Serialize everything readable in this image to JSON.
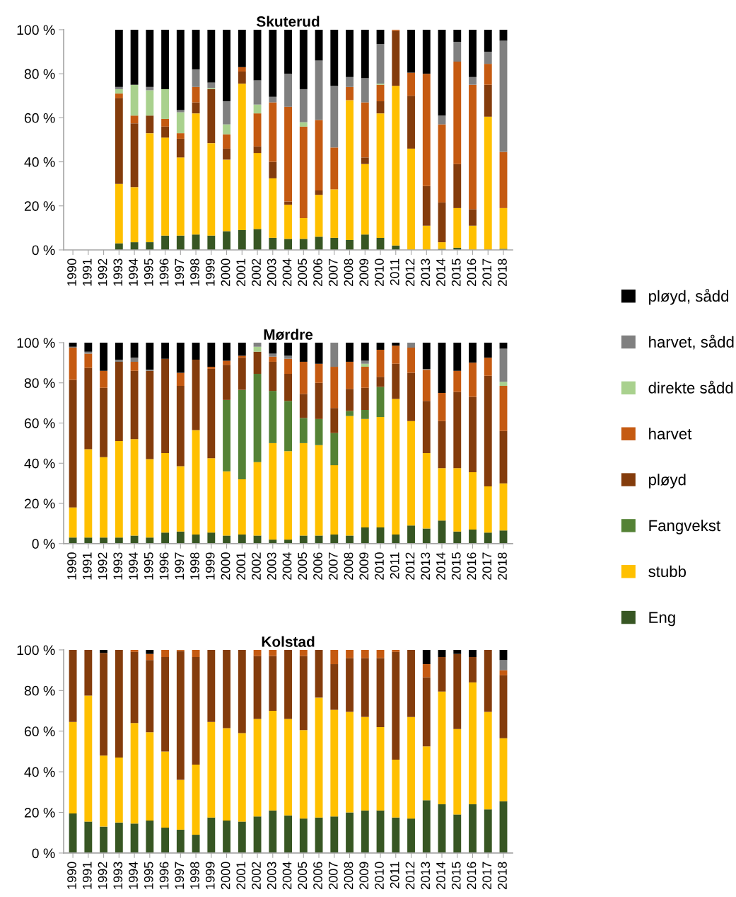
{
  "chart_data": [
    {
      "type": "bar",
      "stacked": true,
      "title": "Skuterud",
      "legend": "right",
      "categories": [
        "1990",
        "1991",
        "1992",
        "1993",
        "1994",
        "1995",
        "1996",
        "1997",
        "1998",
        "1999",
        "2000",
        "2001",
        "2002",
        "2003",
        "2004",
        "2005",
        "2006",
        "2007",
        "2008",
        "2009",
        "2010",
        "2011",
        "2012",
        "2013",
        "2014",
        "2015",
        "2016",
        "2017",
        "2018"
      ],
      "ylim": [
        0,
        100
      ],
      "yticks": [
        {
          "value": 0,
          "label": "0 %"
        },
        {
          "value": 20,
          "label": "20 %"
        },
        {
          "value": 40,
          "label": "40 %"
        },
        {
          "value": 60,
          "label": "60 %"
        },
        {
          "value": 80,
          "label": "80 %"
        },
        {
          "value": 100,
          "label": "100 %"
        }
      ],
      "series": [
        {
          "name": "Eng",
          "color": "#375623",
          "values": [
            null,
            null,
            null,
            3,
            3.5,
            3.5,
            6.5,
            6.5,
            7,
            6.5,
            8.5,
            9,
            9.5,
            5.5,
            5,
            5,
            6,
            5.5,
            4.5,
            7,
            5.5,
            2,
            0,
            0,
            0.5,
            1,
            0,
            0,
            0.5
          ]
        },
        {
          "name": "stubb",
          "color": "#ffc000",
          "values": [
            null,
            null,
            null,
            27,
            25,
            49.5,
            44.5,
            35.5,
            55,
            42,
            32.5,
            66.5,
            34.5,
            27,
            15.5,
            9.5,
            19,
            22,
            63.5,
            32,
            56.5,
            72.5,
            46,
            11,
            3,
            18,
            11,
            60.5,
            18.5
          ]
        },
        {
          "name": "Fangvekst",
          "color": "#548235",
          "values": [
            null,
            null,
            null,
            0,
            0,
            0,
            0,
            0,
            0,
            0,
            0,
            0,
            0,
            0,
            0,
            0,
            0,
            0,
            0,
            0,
            0,
            0,
            0,
            0,
            0,
            0,
            0,
            0,
            0
          ]
        },
        {
          "name": "pløyd",
          "color": "#843c0c",
          "values": [
            null,
            null,
            null,
            39,
            29,
            8,
            5,
            8.5,
            5,
            24.5,
            5,
            5.5,
            3,
            7.5,
            1.5,
            0,
            2,
            0,
            0,
            3,
            5.5,
            25,
            24,
            18,
            18,
            20,
            7.5,
            14.5,
            0
          ]
        },
        {
          "name": "harvet",
          "color": "#c55a11",
          "values": [
            null,
            null,
            null,
            2,
            3.5,
            0,
            3.5,
            2.5,
            7,
            0,
            6.5,
            2,
            15,
            27,
            43,
            41.5,
            32,
            19,
            6,
            25,
            7.5,
            0.5,
            10.5,
            51,
            35.5,
            46.5,
            56.5,
            9.5,
            25.5
          ]
        },
        {
          "name": "direkte sådd",
          "color": "#a9d18e",
          "values": [
            null,
            null,
            null,
            2,
            14,
            11.5,
            13.5,
            9.5,
            0,
            0.5,
            4.5,
            0,
            4,
            0,
            0,
            2,
            0,
            0,
            0,
            0,
            0.5,
            0,
            0,
            0,
            0,
            0,
            0,
            0,
            0
          ]
        },
        {
          "name": "harvet, sådd",
          "color": "#808080",
          "values": [
            null,
            null,
            null,
            1,
            0,
            1.5,
            0,
            1,
            8,
            2.5,
            10.5,
            0,
            11,
            2.5,
            15,
            15,
            27,
            28,
            4.5,
            11,
            18,
            0,
            0,
            0,
            4,
            9,
            3.5,
            5.5,
            50.5
          ]
        },
        {
          "name": "pløyd, sådd",
          "color": "#000000",
          "values": [
            null,
            null,
            null,
            26,
            25,
            26,
            27,
            36.5,
            18,
            24,
            32.5,
            17,
            23,
            30.5,
            20,
            27,
            14,
            25.5,
            21.5,
            22,
            6.5,
            0,
            19.5,
            20,
            39,
            5.5,
            21.5,
            10,
            5
          ]
        }
      ]
    },
    {
      "type": "bar",
      "stacked": true,
      "title": "Mørdre",
      "categories": [
        "1990",
        "1991",
        "1992",
        "1993",
        "1994",
        "1995",
        "1996",
        "1997",
        "1998",
        "1999",
        "2000",
        "2001",
        "2002",
        "2003",
        "2004",
        "2005",
        "2006",
        "2007",
        "2008",
        "2009",
        "2010",
        "2011",
        "2012",
        "2013",
        "2014",
        "2015",
        "2016",
        "2017",
        "2018"
      ],
      "ylim": [
        0,
        100
      ],
      "yticks": [
        {
          "value": 0,
          "label": "0 %"
        },
        {
          "value": 20,
          "label": "20 %"
        },
        {
          "value": 40,
          "label": "40 %"
        },
        {
          "value": 60,
          "label": "60 %"
        },
        {
          "value": 80,
          "label": "80 %"
        },
        {
          "value": 100,
          "label": "100 %"
        }
      ],
      "series": [
        {
          "color": "#375623",
          "values": [
            3,
            3,
            3,
            3,
            4,
            3,
            5.5,
            6,
            4.5,
            5.5,
            4,
            4.5,
            4,
            2,
            2,
            4,
            4,
            4.5,
            4,
            8,
            8,
            4.5,
            9,
            7.5,
            11.5,
            6,
            7,
            5.5,
            6.5
          ]
        },
        {
          "color": "#ffc000",
          "values": [
            15,
            44,
            40,
            48,
            48,
            39,
            39.5,
            32.5,
            52,
            37,
            32,
            27.5,
            36.5,
            48,
            44,
            46,
            45,
            34.5,
            59.5,
            54,
            55,
            67.5,
            52,
            37.5,
            26,
            31.5,
            28.5,
            23,
            23.5
          ]
        },
        {
          "color": "#548235",
          "values": [
            0,
            0,
            0,
            0,
            0,
            0,
            0,
            0,
            0,
            0,
            35.5,
            44.5,
            44,
            26,
            25,
            12.5,
            13,
            16,
            2.5,
            4.5,
            15,
            0,
            0,
            0,
            0,
            0,
            0,
            0,
            0
          ]
        },
        {
          "color": "#843c0c",
          "values": [
            63.5,
            40.5,
            34.5,
            39.5,
            34,
            44,
            47,
            40,
            35,
            44.5,
            17.5,
            16,
            11,
            14.5,
            13.5,
            12,
            18,
            12.5,
            11,
            11,
            5,
            17.5,
            24,
            26,
            23.5,
            38,
            37.5,
            55,
            26
          ]
        },
        {
          "color": "#c55a11",
          "values": [
            16,
            7,
            8.5,
            0,
            4.5,
            0,
            0,
            6.5,
            0,
            1,
            2,
            1,
            0,
            2.5,
            7.5,
            16,
            9.5,
            20.5,
            13.5,
            10.5,
            13.5,
            9,
            12.5,
            15.5,
            14,
            10.5,
            17,
            9,
            22.5
          ]
        },
        {
          "color": "#a9d18e",
          "values": [
            0,
            0,
            0,
            0,
            0,
            0,
            0,
            0,
            0,
            0,
            0,
            0,
            2.5,
            0,
            0,
            0,
            0,
            0,
            0,
            1.5,
            0,
            0,
            0,
            0,
            0,
            0,
            0,
            0,
            2
          ]
        },
        {
          "color": "#808080",
          "values": [
            0.5,
            1,
            0,
            1,
            2,
            0.5,
            0,
            0,
            0,
            0,
            0,
            0,
            2,
            1.5,
            1.5,
            0,
            0,
            12,
            0,
            1.5,
            0,
            0,
            2.5,
            0.5,
            0,
            0,
            0,
            0,
            16.5
          ]
        },
        {
          "color": "#000000",
          "values": [
            2,
            4.5,
            14,
            8.5,
            7.5,
            13.5,
            8,
            15,
            8.5,
            12,
            9,
            6.5,
            0,
            5.5,
            6.5,
            9.5,
            10.5,
            0,
            9.5,
            9,
            3.5,
            1.5,
            0,
            13,
            25,
            14,
            10,
            7.5,
            3
          ]
        }
      ]
    },
    {
      "type": "bar",
      "stacked": true,
      "title": "Kolstad",
      "categories": [
        "1990",
        "1991",
        "1992",
        "1993",
        "1994",
        "1995",
        "1996",
        "1997",
        "1998",
        "1999",
        "2000",
        "2001",
        "2002",
        "2003",
        "2004",
        "2005",
        "2006",
        "2007",
        "2008",
        "2009",
        "2010",
        "2011",
        "2012",
        "2013",
        "2014",
        "2015",
        "2016",
        "2017",
        "2018"
      ],
      "ylim": [
        0,
        100
      ],
      "yticks": [
        {
          "value": 0,
          "label": "0 %"
        },
        {
          "value": 20,
          "label": "20 %"
        },
        {
          "value": 40,
          "label": "40 %"
        },
        {
          "value": 60,
          "label": "60 %"
        },
        {
          "value": 80,
          "label": "80 %"
        },
        {
          "value": 100,
          "label": "100 %"
        }
      ],
      "series": [
        {
          "color": "#375623",
          "values": [
            19.5,
            15.5,
            13,
            15,
            14.5,
            16,
            12.5,
            11.5,
            9,
            17.5,
            16,
            15.5,
            18,
            21,
            18.5,
            17,
            17.5,
            18,
            20,
            21,
            21,
            17.5,
            17,
            26,
            24,
            19,
            24,
            21.5,
            25.5
          ]
        },
        {
          "color": "#ffc000",
          "values": [
            45,
            62,
            35,
            32,
            49.5,
            43.5,
            37.5,
            24.5,
            34.5,
            47,
            45.5,
            43.5,
            48,
            49,
            47.5,
            43.5,
            59,
            52.5,
            49.5,
            46,
            41,
            28.5,
            50,
            26.5,
            55.5,
            42,
            60,
            48,
            31
          ]
        },
        {
          "color": "#548235",
          "values": [
            0,
            0,
            0,
            0,
            0,
            0,
            0,
            0,
            0,
            0,
            0,
            0,
            0,
            0,
            0,
            0,
            0,
            0,
            0,
            0,
            0,
            0,
            0,
            0,
            0,
            0,
            0,
            0,
            0
          ]
        },
        {
          "color": "#843c0c",
          "values": [
            35.5,
            22.5,
            50.5,
            53,
            35,
            35.5,
            46.5,
            63.5,
            53,
            35.5,
            38.5,
            41,
            31,
            27,
            34,
            36.5,
            23.5,
            22.5,
            26.5,
            29,
            34,
            53,
            33,
            34,
            17,
            37,
            12.5,
            30.5,
            31
          ]
        },
        {
          "color": "#c55a11",
          "values": [
            0,
            0,
            0,
            0,
            1,
            3,
            3.5,
            0.5,
            3.5,
            0,
            0,
            0,
            3,
            3,
            0,
            3,
            0,
            7,
            4,
            4,
            4,
            1,
            0,
            6.5,
            0,
            0,
            0,
            0,
            2.5
          ]
        },
        {
          "color": "#a9d18e",
          "values": [
            0,
            0,
            0,
            0,
            0,
            0,
            0,
            0,
            0,
            0,
            0,
            0,
            0,
            0,
            0,
            0,
            0,
            0,
            0,
            0,
            0,
            0,
            0,
            0,
            0,
            0,
            0,
            0,
            0
          ]
        },
        {
          "color": "#808080",
          "values": [
            0,
            0,
            0,
            0,
            0,
            0,
            0,
            0,
            0,
            0,
            0,
            0,
            0,
            0,
            0,
            0,
            0,
            0,
            0,
            0,
            0,
            0,
            0,
            0,
            0,
            0,
            0,
            0,
            5
          ]
        },
        {
          "color": "#000000",
          "values": [
            0,
            0,
            1.5,
            0,
            0,
            2,
            0,
            0,
            0,
            0,
            0,
            0,
            0,
            0,
            0,
            0,
            0,
            0,
            0,
            0,
            0,
            0,
            0,
            7,
            3.5,
            2,
            3.5,
            0,
            5
          ]
        }
      ]
    }
  ]
}
